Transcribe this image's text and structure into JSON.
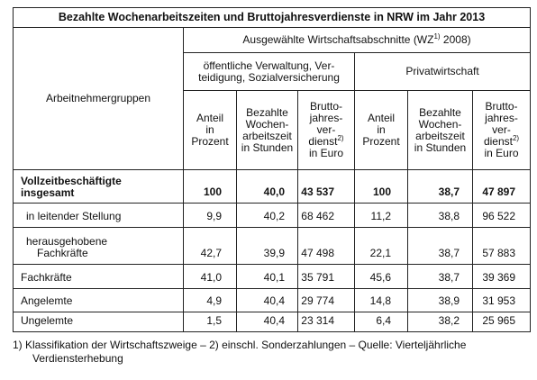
{
  "title": "Bezahlte Wochenarbeitszeiten und Bruttojahresverdienste in NRW im Jahr 2013",
  "header": {
    "row_label": "Arbeitnehmergruppen",
    "group": {
      "text": "Ausgewählte Wirtschaftsabschnitte (WZ",
      "sup": "1)",
      "tail": " 2008)"
    },
    "sections": [
      {
        "lines": [
          "öffentliche Verwaltung, Ver-",
          "teidigung, Sozialversicherung"
        ]
      },
      {
        "lines": [
          "Privatwirtschaft"
        ]
      }
    ],
    "columns": [
      {
        "lines": [
          "Anteil",
          "in",
          "Prozent"
        ]
      },
      {
        "lines": [
          "Bezahlte",
          "Wochen-",
          "arbeitszeit",
          "in Stunden"
        ]
      },
      {
        "lines": [
          "Brutto-",
          "jahres-",
          "ver-",
          {
            "text": "dienst",
            "sup": "2)"
          },
          "in Euro"
        ]
      },
      {
        "lines": [
          "Anteil",
          "in",
          "Prozent"
        ]
      },
      {
        "lines": [
          "Bezahlte",
          "Wochen-",
          "arbeitszeit",
          "in Stunden"
        ]
      },
      {
        "lines": [
          "Brutto-",
          "jahres-",
          "ver-",
          {
            "text": "dienst",
            "sup": "2)"
          },
          "in Euro"
        ]
      }
    ]
  },
  "table": {
    "rows": [
      {
        "label": [
          "Vollzeitbeschäftigte",
          "insgesamt"
        ],
        "values": [
          "100",
          "40,0",
          "43 537",
          "100",
          "38,7",
          "47 897"
        ]
      },
      {
        "label": [
          "in leitender Stellung"
        ],
        "values": [
          "9,9",
          "40,2",
          "68 462",
          "11,2",
          "38,8",
          "96 522"
        ]
      },
      {
        "label": [
          "herausgehobene",
          "Fachkräfte"
        ],
        "values": [
          "42,7",
          "39,9",
          "47 498",
          "22,1",
          "38,7",
          "57 883"
        ]
      },
      {
        "label": [
          "Fachkräfte"
        ],
        "values": [
          "41,0",
          "40,1",
          "35 791",
          "45,6",
          "38,7",
          "39 369"
        ]
      },
      {
        "label": [
          "Angelemte"
        ],
        "values": [
          "4,9",
          "40,4",
          "29 774",
          "14,8",
          "38,9",
          "31 953"
        ]
      },
      {
        "label": [
          "Ungelemte"
        ],
        "values": [
          "1,5",
          "40,4",
          "23 314",
          "6,4",
          "38,2",
          "25 965"
        ]
      }
    ]
  },
  "footnote": [
    "1)  Klassifikation der Wirtschaftszweige – 2) einschl. Sonderzahlungen – Quelle: Vierteljährliche",
    "Verdiensterhebung"
  ]
}
